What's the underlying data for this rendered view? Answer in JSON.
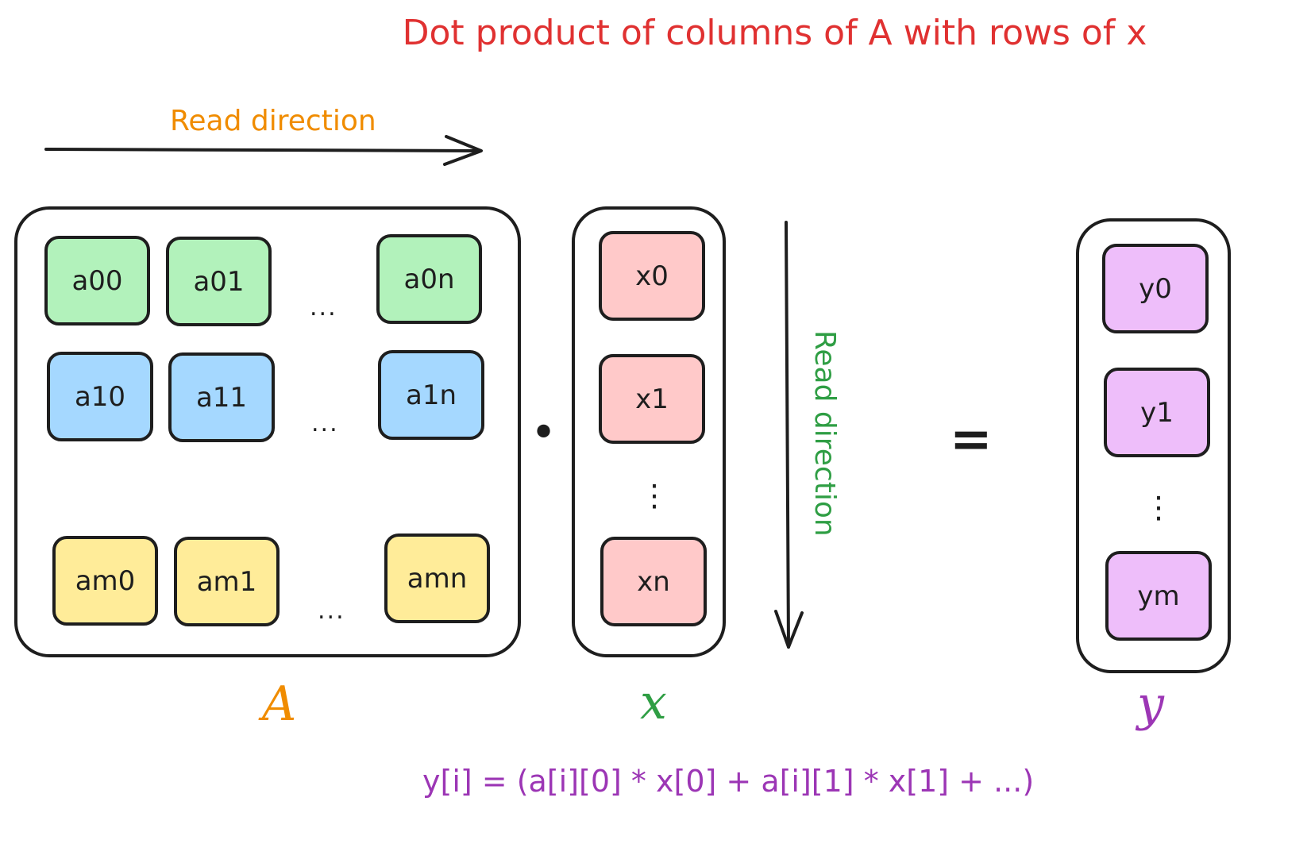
{
  "title": "Dot product of columns of A with rows of x",
  "read_direction_horizontal": "Read direction",
  "read_direction_vertical": "Read direction",
  "matrix_a": {
    "label": "A",
    "rows": [
      {
        "cells": [
          "a00",
          "a01",
          "a0n"
        ],
        "color": "#b2f2bb"
      },
      {
        "cells": [
          "a10",
          "a11",
          "a1n"
        ],
        "color": "#a5d8ff"
      },
      {
        "cells": [
          "am0",
          "am1",
          "amn"
        ],
        "color": "#ffec99"
      }
    ],
    "ellipsis": "..."
  },
  "dot_operator": "•",
  "vector_x": {
    "label": "x",
    "cells": [
      "x0",
      "x1",
      "xn"
    ],
    "color": "#ffc9c9",
    "vertical_ellipsis": "⋮"
  },
  "equals": "=",
  "vector_y": {
    "label": "y",
    "cells": [
      "y0",
      "y1",
      "ym"
    ],
    "color": "#eebefa",
    "vertical_ellipsis": "⋮"
  },
  "formula": "y[i] = (a[i][0] * x[0] + a[i][1] * x[1] + ...)",
  "colors": {
    "title": "#e03131",
    "read_h": "#f08c00",
    "read_v": "#2f9e44",
    "label_a": "#f08c00",
    "label_x": "#2f9e44",
    "label_y": "#9c36b5",
    "formula": "#9c36b5",
    "stroke": "#1e1e1e"
  }
}
